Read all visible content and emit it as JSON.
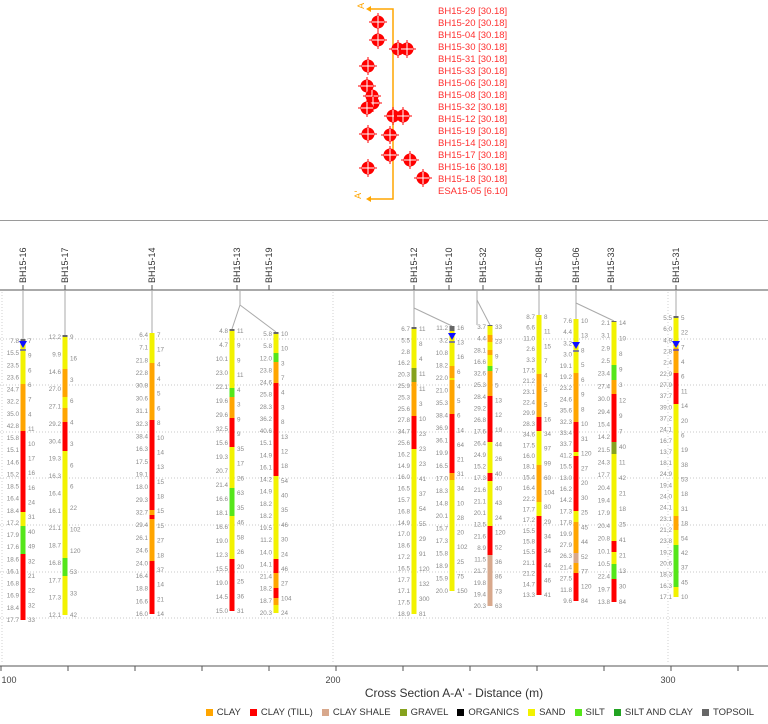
{
  "map": {
    "section_start_label": "A",
    "section_end_label": "A'",
    "boreholes": [
      {
        "label": "BH15-29 [30.18]"
      },
      {
        "label": "BH15-20 [30.18]"
      },
      {
        "label": "BH15-04 [30.18]"
      },
      {
        "label": "BH15-30 [30.18]"
      },
      {
        "label": "BH15-31 [30.18]"
      },
      {
        "label": "BH15-33 [30.18]"
      },
      {
        "label": "BH15-06 [30.18]"
      },
      {
        "label": "BH15-08 [30.18]"
      },
      {
        "label": "BH15-32 [30.18]"
      },
      {
        "label": "BH15-12 [30.18]"
      },
      {
        "label": "BH15-19 [30.18]"
      },
      {
        "label": "BH15-14 [30.18]"
      },
      {
        "label": "BH15-17 [30.18]"
      },
      {
        "label": "BH15-16 [30.18]"
      },
      {
        "label": "BH15-18 [30.18]"
      },
      {
        "label": "ESA15-05 [6.10]"
      }
    ]
  },
  "section": {
    "x_axis_title": "Cross Section A-A' - Distance (m)",
    "x_ticks": [
      "100",
      "200",
      "300"
    ],
    "boreholes": [
      {
        "name": "BH15-16",
        "water_level": true,
        "layers": [
          "TOPSOIL",
          "SAND",
          "CLAY",
          "CLAY (TILL)",
          "SAND",
          "SILT",
          "CLAY (TILL)"
        ],
        "moisture": [
          "7.8",
          "15.5",
          "23.5",
          "23.6",
          "24.7",
          "32.2",
          "35.0",
          "42.8",
          "15.8",
          "15.1",
          "14.6",
          "15.2",
          "18.5",
          "16.4",
          "18.4",
          "17.2",
          "17.9",
          "17.6",
          "18.6",
          "16.1",
          "16.8",
          "16.9",
          "18.4",
          "17.7"
        ],
        "n_values": [
          "7",
          "9",
          "6",
          "6",
          "7",
          "4",
          "11",
          "10",
          "17",
          "16",
          "16",
          "24",
          "31",
          "40",
          "49",
          "32",
          "21",
          "22",
          "32",
          "33"
        ]
      },
      {
        "name": "BH15-17",
        "water_level": false,
        "layers": [
          "TOPSOIL",
          "SAND",
          "CLAY",
          "SAND",
          "CLAY",
          "CLAY (TILL)",
          "SAND",
          "SILT",
          "SAND"
        ],
        "moisture": [
          "12.2",
          "9.9",
          "14.6",
          "27.0",
          "27.1",
          "29.2",
          "30.4",
          "19.3",
          "16.3",
          "16.4",
          "16.1",
          "21.1",
          "18.7",
          "16.8",
          "17.7",
          "17.3",
          "12.1"
        ],
        "n_values": [
          "9",
          "16",
          "3",
          "6",
          "4",
          "3",
          "6",
          "6",
          "22",
          "102",
          "120",
          "53",
          "33",
          "42"
        ]
      },
      {
        "name": "BH15-14",
        "water_level": false,
        "layers": [
          "SAND",
          "CLAY",
          "CLAY (TILL)",
          "CLAY",
          "CLAY (TILL)",
          "CLAY",
          "CLAY (TILL)"
        ],
        "moisture": [
          "6.4",
          "7.1",
          "21.8",
          "22.8",
          "30.8",
          "30.6",
          "31.1",
          "32.3",
          "38.4",
          "16.3",
          "17.5",
          "19.1",
          "18.0",
          "29.3",
          "32.7",
          "29.4",
          "26.1",
          "24.6",
          "24.0",
          "16.4",
          "18.8",
          "16.6",
          "16.0"
        ],
        "n_values": [
          "7",
          "17",
          "4",
          "4",
          "5",
          "6",
          "8",
          "10",
          "14",
          "13",
          "15",
          "18",
          "15",
          "15",
          "27",
          "18",
          "37",
          "14",
          "21",
          "14"
        ]
      },
      {
        "name": "BH15-13",
        "water_level": false,
        "layers": [
          "TOPSOIL",
          "SAND",
          "SILT",
          "CLAY",
          "CLAY (TILL)",
          "SAND",
          "SILT",
          "SAND",
          "CLAY (TILL)"
        ],
        "moisture": [
          "4.8",
          "4.7",
          "10.1",
          "23.0",
          "22.1",
          "19.6",
          "29.6",
          "32.5",
          "15.6",
          "19.3",
          "20.7",
          "21.4",
          "16.6",
          "18.1",
          "16.6",
          "19.0",
          "12.3",
          "15.5",
          "19.0",
          "14.5",
          "15.0"
        ],
        "n_values": [
          "11",
          "9",
          "9",
          "11",
          "4",
          "3",
          "9",
          "9",
          "35",
          "17",
          "26",
          "63",
          "35",
          "46",
          "58",
          "26",
          "20",
          "25",
          "36",
          "31"
        ]
      },
      {
        "name": "BH15-19",
        "water_level": false,
        "layers": [
          "TOPSOIL",
          "SAND",
          "SILT",
          "CLAY",
          "CLAY (TILL)",
          "SAND",
          "CLAY (TILL)",
          "CLAY",
          "CLAY (TILL)",
          "CLAY",
          "SAND"
        ],
        "moisture": [
          "5.8",
          "5.8",
          "12.0",
          "23.8",
          "24.6",
          "25.8",
          "28.3",
          "36.2",
          "40.6",
          "15.1",
          "14.9",
          "16.1",
          "14.2",
          "14.9",
          "18.2",
          "18.2",
          "19.5",
          "11.2",
          "14.0",
          "14.1",
          "21.4",
          "18.2",
          "18.7",
          "20.3"
        ],
        "n_values": [
          "10",
          "10",
          "3",
          "7",
          "4",
          "3",
          "8",
          "13",
          "12",
          "18",
          "54",
          "40",
          "35",
          "46",
          "30",
          "24",
          "46",
          "27",
          "104",
          "24"
        ]
      },
      {
        "name": "BH15-12",
        "water_level": false,
        "layers": [
          "TOPSOIL",
          "SAND",
          "GRAVEL",
          "CLAY",
          "CLAY (TILL)",
          "SAND"
        ],
        "moisture": [
          "6.7",
          "5.5",
          "2.8",
          "16.2",
          "20.3",
          "25.9",
          "25.3",
          "25.6",
          "27.8",
          "34.7",
          "25.6",
          "16.2",
          "14.9",
          "16.0",
          "16.5",
          "15.7",
          "16.8",
          "14.9",
          "17.0",
          "18.6",
          "17.2",
          "16.5",
          "17.7",
          "17.1",
          "17.5",
          "18.9"
        ],
        "n_values": [
          "11",
          "8",
          "4",
          "11",
          "11",
          "3",
          "10",
          "23",
          "23",
          "23",
          "41",
          "37",
          "54",
          "55",
          "29",
          "91",
          "120",
          "132",
          "300",
          "81"
        ]
      },
      {
        "name": "BH15-10",
        "water_level": true,
        "layers": [
          "TOPSOIL",
          "SAND",
          "CLAY",
          "SAND",
          "CLAY",
          "CLAY (TILL)",
          "CLAY",
          "SAND"
        ],
        "moisture": [
          "11.2",
          "3.2",
          "10.8",
          "18.2",
          "22.0",
          "21.0",
          "35.3",
          "38.4",
          "36.9",
          "36.1",
          "19.9",
          "16.5",
          "17.0",
          "18.3",
          "14.8",
          "20.1",
          "15.7",
          "17.3",
          "15.8",
          "18.9",
          "15.9",
          "20.0"
        ],
        "n_values": [
          "16",
          "13",
          "16",
          "6",
          "4",
          "5",
          "6",
          "14",
          "64",
          "21",
          "31",
          "34",
          "10",
          "28",
          "20",
          "102",
          "25",
          "75",
          "150"
        ]
      },
      {
        "name": "BH15-32",
        "water_level": false,
        "layers": [
          "TOPSOIL",
          "SAND",
          "CLAY",
          "SAND",
          "CLAY",
          "SAND",
          "SILT",
          "CLAY",
          "CLAY (TILL)",
          "SAND",
          "CLAY (TILL)",
          "SAND",
          "CLAY (TILL)",
          "CLAY SHALE"
        ],
        "moisture": [
          "3.7",
          "4.4",
          "28.1",
          "16.6",
          "32.6",
          "25.3",
          "28.4",
          "29.2",
          "26.8",
          "17.6",
          "26.4",
          "24.9",
          "15.2",
          "17.3",
          "21.6",
          "21.1",
          "20.1",
          "12.5",
          "21.6",
          "8.9",
          "11.5",
          "21.7",
          "19.8",
          "19.4",
          "20.3"
        ],
        "n_values": [
          "33",
          "23",
          "9",
          "7",
          "5",
          "13",
          "12",
          "19",
          "44",
          "26",
          "40",
          "40",
          "43",
          "24",
          "120",
          "52",
          "36",
          "86",
          "73",
          "63"
        ]
      },
      {
        "name": "BH15-08",
        "water_level": false,
        "layers": [
          "SAND",
          "CLAY",
          "CLAY (TILL)",
          "SAND",
          "CLAY",
          "SAND",
          "CLAY (TILL)"
        ],
        "moisture": [
          "8.7",
          "6.6",
          "11.0",
          "2.6",
          "3.3",
          "17.5",
          "21.2",
          "23.1",
          "22.4",
          "29.9",
          "28.3",
          "34.6",
          "17.5",
          "16.0",
          "18.1",
          "15.4",
          "16.4",
          "22.2",
          "17.7",
          "17.2",
          "15.5",
          "15.8",
          "15.5",
          "21.1",
          "21.2",
          "14.7",
          "13.3"
        ],
        "n_values": [
          "8",
          "11",
          "15",
          "7",
          "4",
          "5",
          "5",
          "16",
          "34",
          "97",
          "99",
          "60",
          "104",
          "80",
          "29",
          "34",
          "34",
          "44",
          "46",
          "41"
        ]
      },
      {
        "name": "BH15-06",
        "water_level": true,
        "layers": [
          "SAND",
          "CLAY",
          "CLAY (TILL)",
          "SAND",
          "CLAY (TILL)",
          "SAND",
          "CLAY",
          "CLAY SHALE",
          "CLAY",
          "CLAY (TILL)"
        ],
        "moisture": [
          "7.6",
          "4.4",
          "3.2",
          "3.0",
          "19.1",
          "19.2",
          "23.2",
          "24.6",
          "35.6",
          "32.3",
          "33.4",
          "33.7",
          "41.2",
          "15.5",
          "13.0",
          "16.2",
          "14.2",
          "17.3",
          "17.8",
          "19.9",
          "27.9",
          "26.3",
          "21.4",
          "27.5",
          "11.8",
          "9.6"
        ],
        "n_values": [
          "10",
          "13",
          "8",
          "5",
          "6",
          "9",
          "8",
          "10",
          "31",
          "120",
          "27",
          "20",
          "30",
          "25",
          "45",
          "44",
          "52",
          "77",
          "120",
          "84"
        ]
      },
      {
        "name": "BH15-33",
        "water_level": false,
        "layers": [
          "TOPSOIL",
          "SAND",
          "SILT",
          "CLAY",
          "CLAY (TILL)",
          "GRAVEL",
          "SAND",
          "CLAY (TILL)",
          "SAND",
          "SILT",
          "CLAY (TILL)"
        ],
        "moisture": [
          "2.1",
          "3.1",
          "2.9",
          "2.5",
          "23.4",
          "27.4",
          "30.0",
          "29.4",
          "15.4",
          "14.2",
          "21.5",
          "24.3",
          "17.7",
          "20.4",
          "19.4",
          "17.9",
          "20.4",
          "20.8",
          "10.1",
          "10.5",
          "22.4",
          "19.7",
          "13.8"
        ],
        "n_values": [
          "14",
          "10",
          "8",
          "9",
          "3",
          "12",
          "9",
          "7",
          "40",
          "11",
          "42",
          "21",
          "18",
          "25",
          "41",
          "21",
          "13",
          "30",
          "84"
        ]
      },
      {
        "name": "BH15-31",
        "water_level": true,
        "layers": [
          "TOPSOIL",
          "SAND",
          "CLAY",
          "SAND",
          "CLAY",
          "CLAY (TILL)",
          "SAND",
          "CLAY",
          "SAND",
          "SILT",
          "SAND"
        ],
        "moisture": [
          "5.5",
          "6.0",
          "4.9",
          "2.8",
          "2.4",
          "22.9",
          "27.9",
          "37.7",
          "39.0",
          "37.2",
          "24.1",
          "16.7",
          "13.7",
          "18.1",
          "24.9",
          "19.4",
          "24.0",
          "24.1",
          "23.1",
          "21.2",
          "23.8",
          "19.2",
          "20.6",
          "18.3",
          "16.3",
          "17.1"
        ],
        "n_values": [
          "5",
          "22",
          "7",
          "4",
          "6",
          "11",
          "14",
          "20",
          "6",
          "19",
          "38",
          "53",
          "18",
          "31",
          "18",
          "54",
          "42",
          "37",
          "45",
          "10"
        ]
      }
    ]
  },
  "legend": [
    {
      "label": "CLAY",
      "color": "#ffa500"
    },
    {
      "label": "CLAY (TILL)",
      "color": "#ff0000"
    },
    {
      "label": "CLAY SHALE",
      "color": "#d8a88c"
    },
    {
      "label": "GRAVEL",
      "color": "#86a21e"
    },
    {
      "label": "ORGANICS",
      "color": "#000000"
    },
    {
      "label": "SAND",
      "color": "#f2f200"
    },
    {
      "label": "SILT",
      "color": "#55e61a"
    },
    {
      "label": "SILT AND CLAY",
      "color": "#22a322"
    },
    {
      "label": "TOPSOIL",
      "color": "#666666"
    }
  ],
  "colors": {
    "marker": "#ff0000",
    "section_line": "#ffa500",
    "water_level": "#1010ff",
    "label_text": "#ff3030"
  }
}
